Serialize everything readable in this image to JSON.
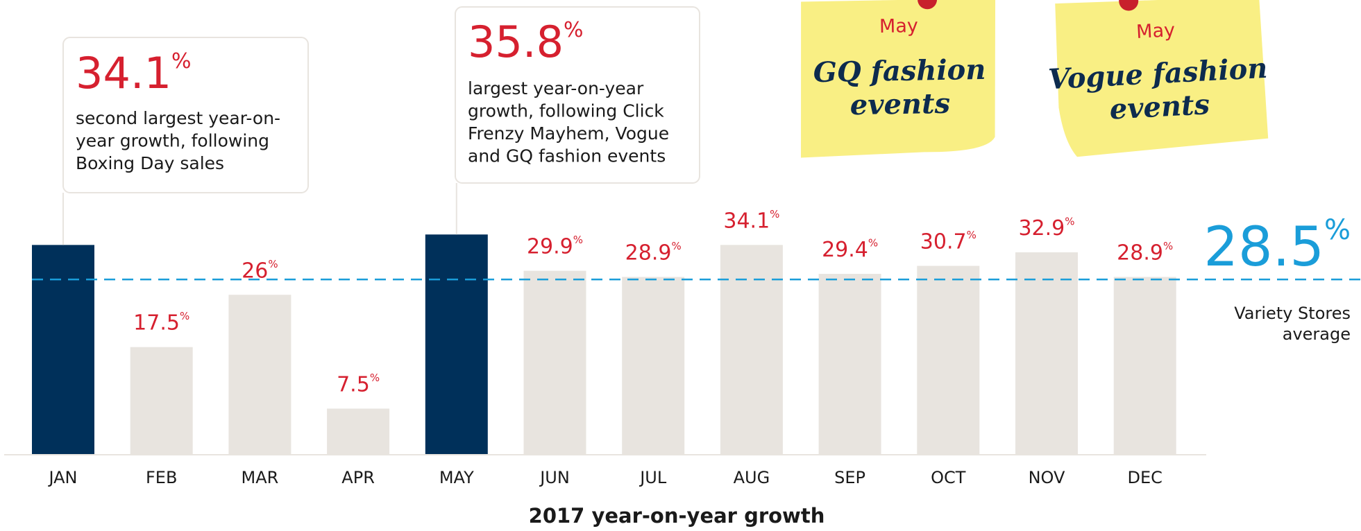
{
  "chart_data": {
    "type": "bar",
    "title": "2017 year-on-year growth",
    "categories": [
      "JAN",
      "FEB",
      "MAR",
      "APR",
      "MAY",
      "JUN",
      "JUL",
      "AUG",
      "SEP",
      "OCT",
      "NOV",
      "DEC"
    ],
    "values": [
      34.1,
      17.5,
      26,
      7.5,
      35.8,
      29.9,
      28.9,
      34.1,
      29.4,
      30.7,
      32.9,
      28.9
    ],
    "value_labels": [
      null,
      "17.5%",
      "26%",
      "7.5%",
      null,
      "29.9%",
      "28.9%",
      "34.1%",
      "29.4%",
      "30.7%",
      "32.9%",
      "28.9%"
    ],
    "colors": [
      "#00305a",
      "#e8e4df",
      "#e8e4df",
      "#e8e4df",
      "#00305a",
      "#e8e4df",
      "#e8e4df",
      "#e8e4df",
      "#e8e4df",
      "#e8e4df",
      "#e8e4df",
      "#e8e4df"
    ],
    "ylim": [
      0,
      40
    ],
    "average": 28.5,
    "average_label": "28.5%",
    "average_caption": [
      "Variety Stores",
      "average"
    ],
    "average_color": "#1a9dd9",
    "callouts": [
      {
        "index": 0,
        "label": "34.1%",
        "lines": [
          "second largest year-on-",
          "year growth, following",
          "Boxing Day sales"
        ]
      },
      {
        "index": 4,
        "label": "35.8%",
        "lines": [
          "largest year-on-year",
          "growth, following Click",
          "Frenzy Mayhem, Vogue",
          "and GQ fashion events"
        ]
      }
    ],
    "notes": [
      {
        "month": "May",
        "lines": [
          "GQ fashion",
          "events"
        ]
      },
      {
        "month": "May",
        "lines": [
          "Vogue fashion",
          "events"
        ]
      }
    ]
  }
}
